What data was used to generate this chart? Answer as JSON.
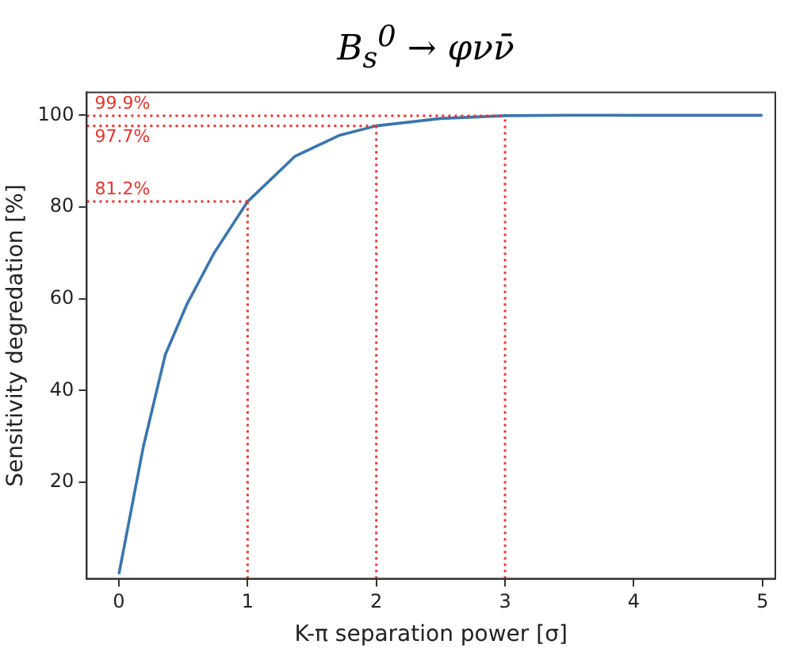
{
  "chart_data": {
    "type": "line",
    "title": "B$_{s}$$^{0}$ → φνν̄",
    "xlabel": "K-π separation power [σ]",
    "ylabel": "Sensitivity degredation [%]",
    "series": [
      {
        "color": "#3a75b0",
        "x": [
          0,
          0.19,
          0.36,
          0.53,
          0.74,
          1,
          1.37,
          1.71,
          2,
          2.5,
          3,
          3.5,
          4,
          5
        ],
        "values": [
          0,
          27.8,
          47.8,
          58.9,
          70,
          81.2,
          91.1,
          95.6,
          97.7,
          99.3,
          99.9,
          100,
          100,
          100
        ]
      }
    ],
    "xlim": [
      -0.25,
      5.1
    ],
    "xticks": [
      0,
      1,
      2,
      3,
      4,
      5
    ],
    "ylim": [
      -1,
      105
    ],
    "yticks": [
      20,
      40,
      60,
      80,
      100
    ],
    "grid": false,
    "legend": false,
    "marker": "none",
    "line_style": "solid",
    "ref_lines": [
      {
        "axis": "x",
        "value": 1,
        "color": "#e8322a",
        "line_style": "dotted"
      },
      {
        "axis": "x",
        "value": 2,
        "color": "#e8322a",
        "line_style": "dotted"
      },
      {
        "axis": "x",
        "value": 3,
        "color": "#e8322a",
        "line_style": "dotted"
      },
      {
        "axis": "y",
        "value": 81.2,
        "label": "81.2%",
        "color": "#e8322a",
        "line_style": "dotted"
      },
      {
        "axis": "y",
        "value": 97.7,
        "label": "97.7%",
        "color": "#e8322a",
        "line_style": "dotted"
      },
      {
        "axis": "y",
        "value": 99.9,
        "label": "99.9%",
        "color": "#e8322a",
        "line_style": "dotted"
      }
    ]
  }
}
